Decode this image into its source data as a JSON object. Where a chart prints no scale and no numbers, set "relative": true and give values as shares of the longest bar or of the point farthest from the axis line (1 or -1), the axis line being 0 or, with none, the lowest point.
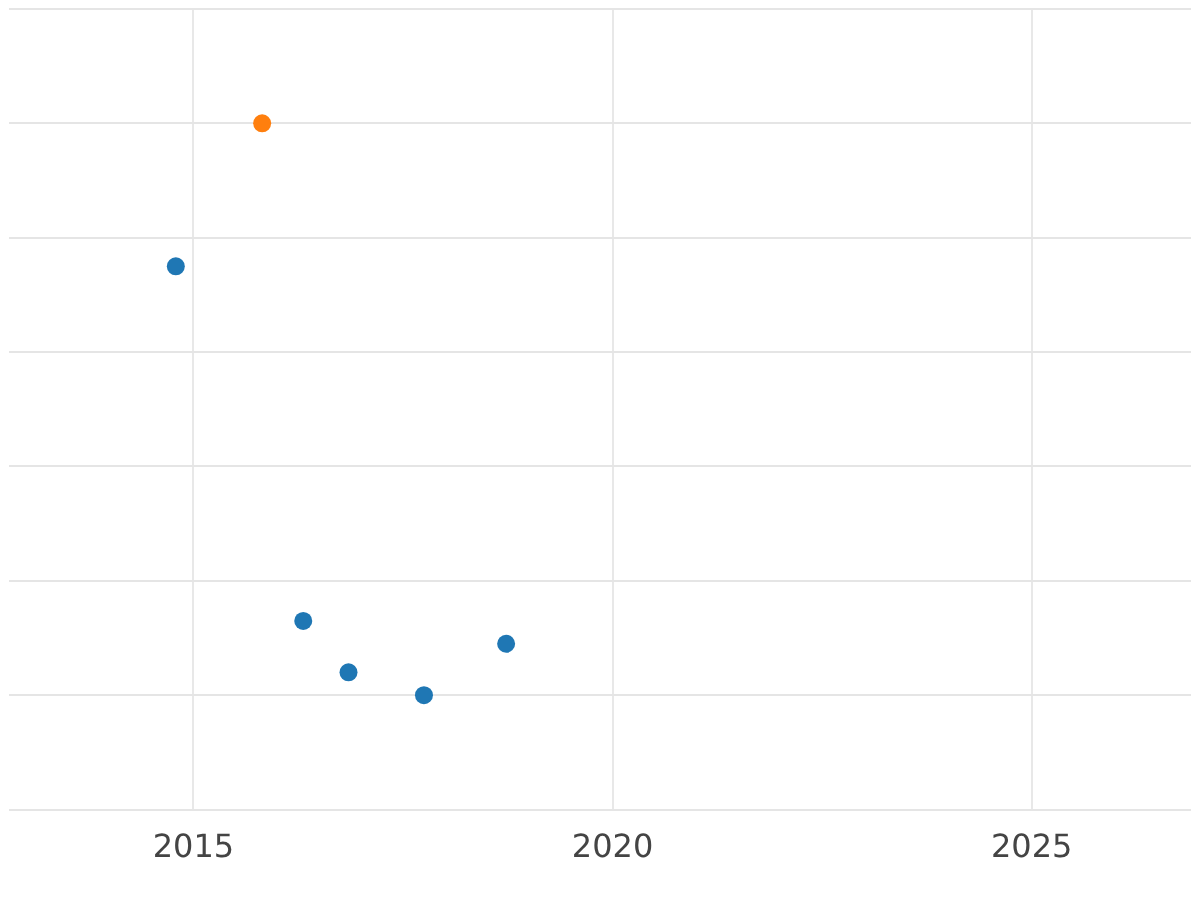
{
  "chart_data": {
    "type": "scatter",
    "relative": true,
    "xlim": [
      2012.8,
      2026.9
    ],
    "xticks": [
      2015,
      2020,
      2025
    ],
    "tick_labels": "x",
    "grid": true,
    "legend": false,
    "marker": "circle",
    "series": [
      {
        "color": "#1f77b4",
        "x": [
          2014.79,
          2016.31,
          2016.85,
          2017.75,
          2018.73
        ],
        "values": [
          0.75,
          0.13,
          0.04,
          0,
          0.09
        ]
      },
      {
        "color": "#ff7f0e",
        "x": [
          2015.82
        ],
        "values": [
          1
        ]
      }
    ]
  }
}
